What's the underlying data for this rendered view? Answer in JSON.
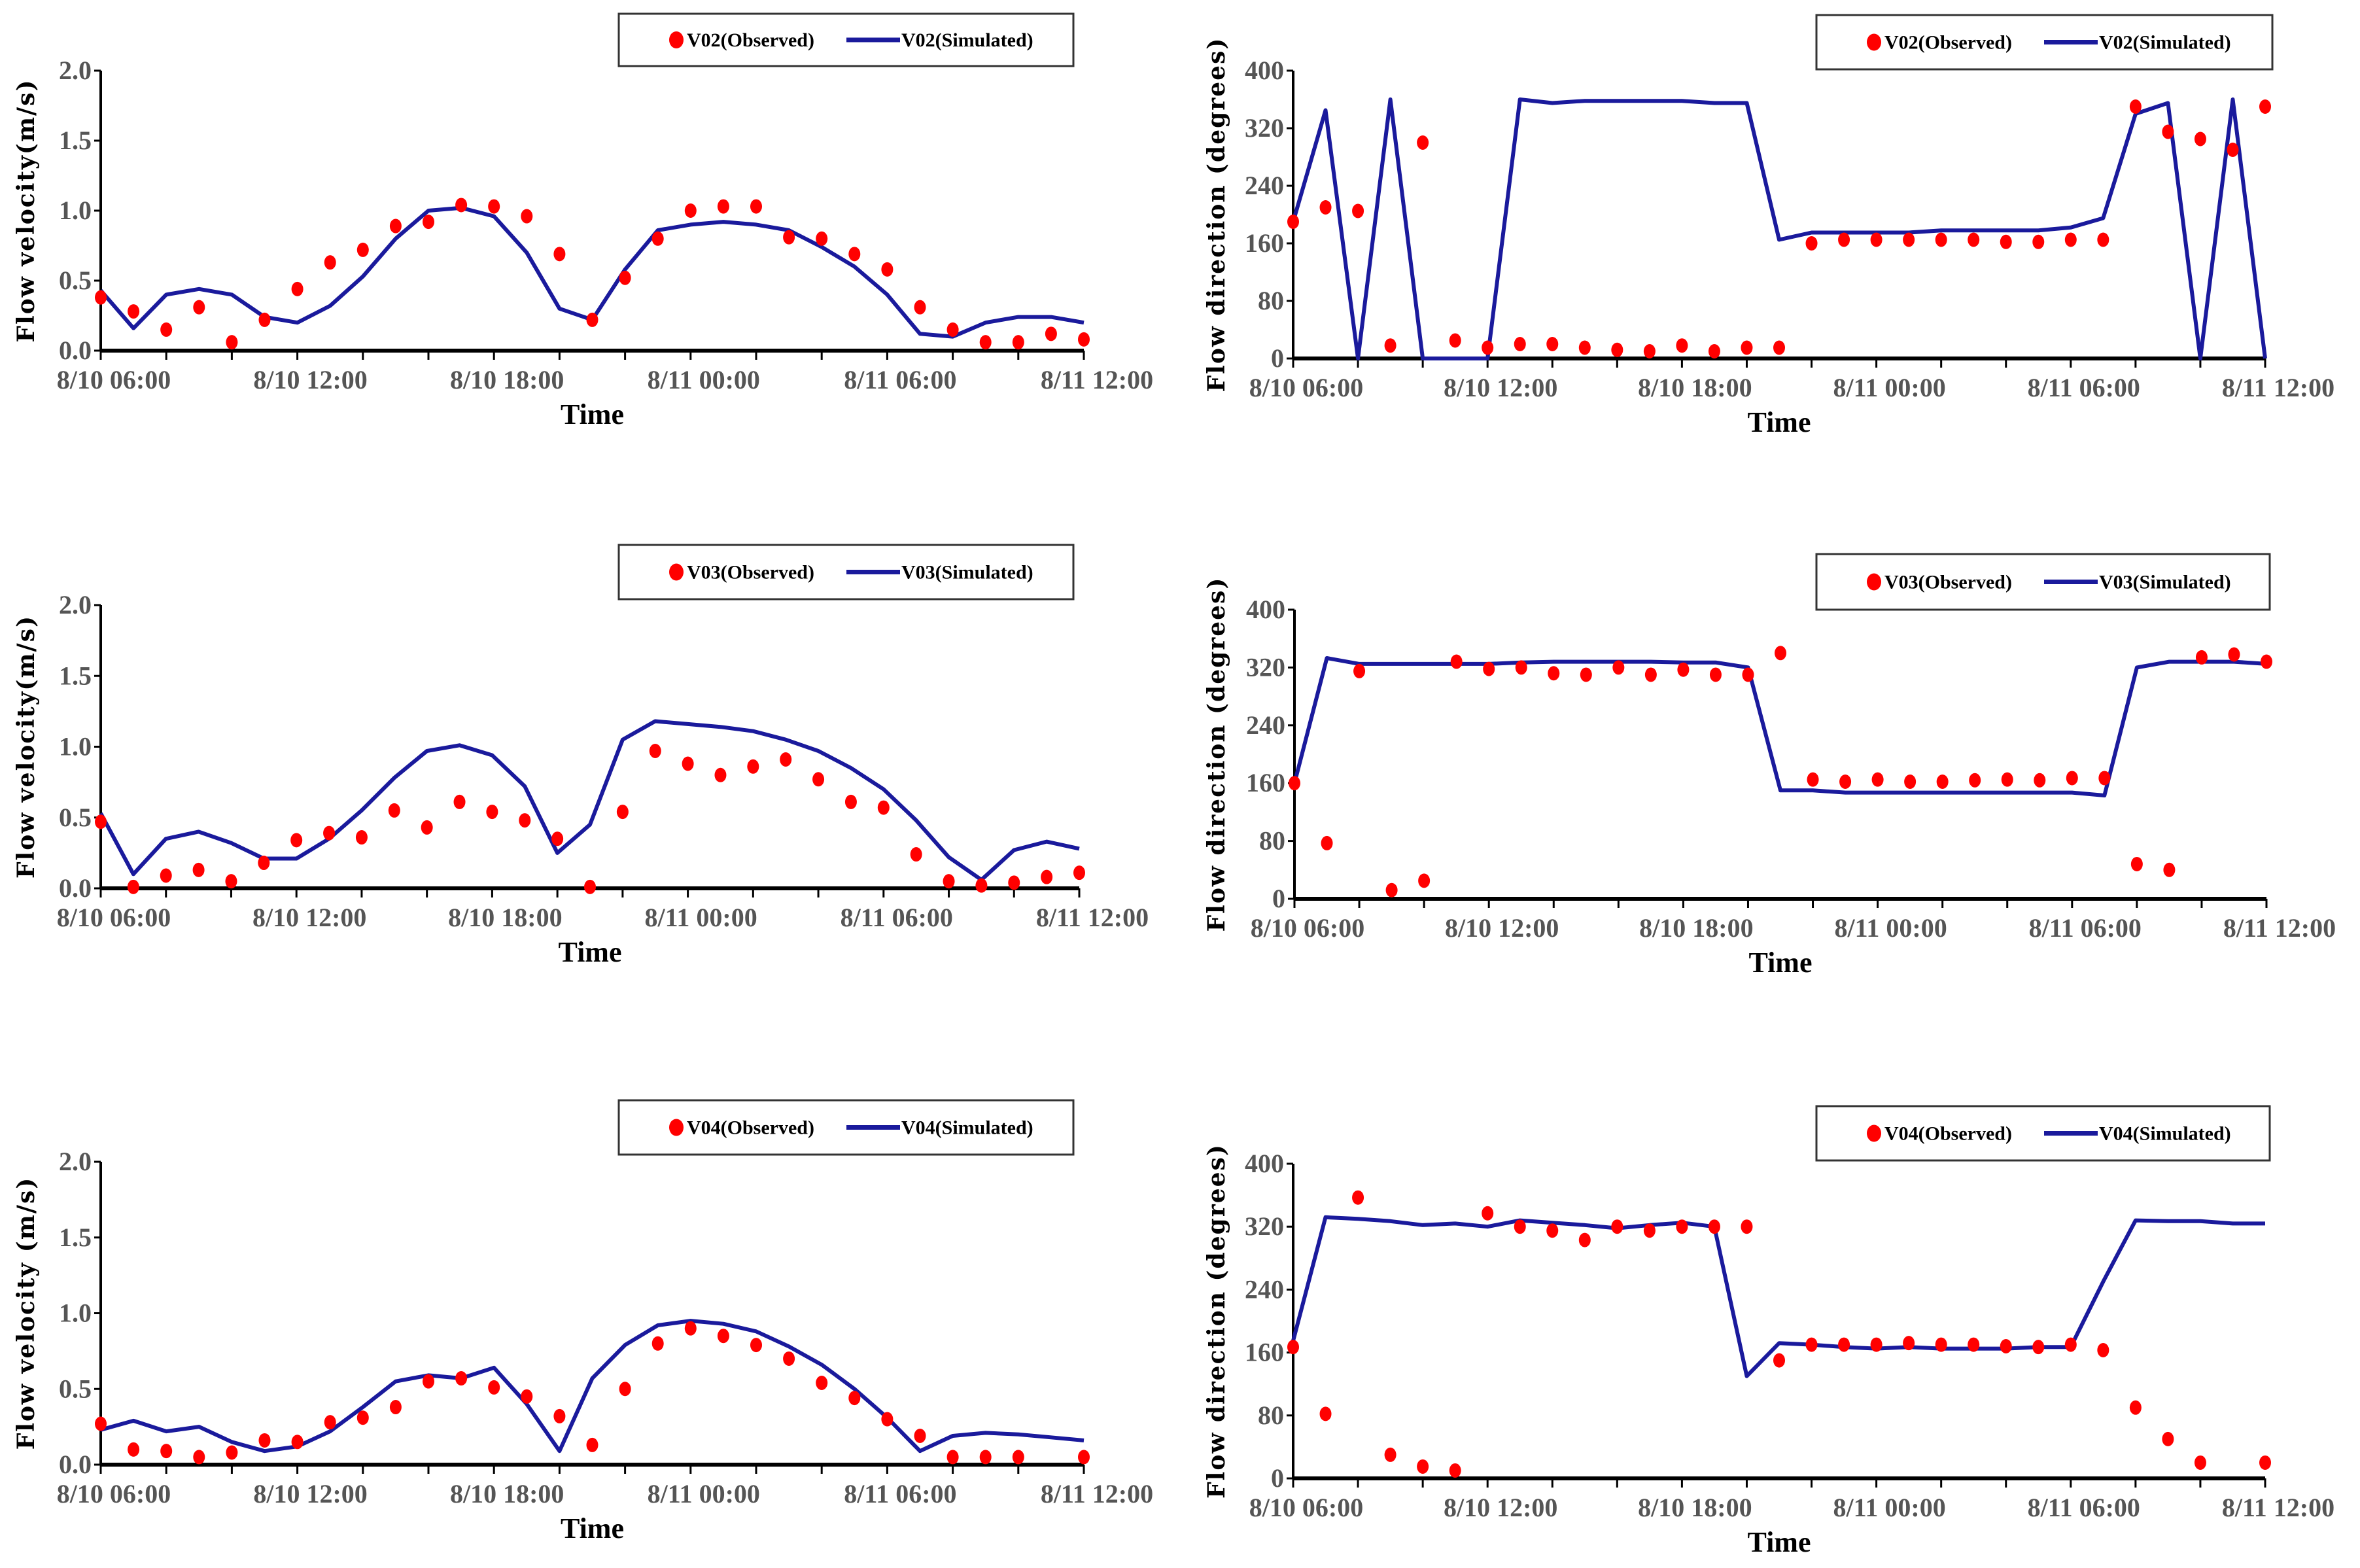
{
  "chart_data": [
    {
      "type": "line+scatter",
      "id": "v02-velocity",
      "ylabel": "Flow velocity(m/s)",
      "xlabel": "Time",
      "ylim": [
        0,
        2.0
      ],
      "yticks": [
        "0.0",
        "0.5",
        "1.0",
        "1.5",
        "2.0"
      ],
      "ytick_values": [
        0,
        0.5,
        1.0,
        1.5,
        2.0
      ],
      "xlim_hours": [
        0,
        30
      ],
      "xtick_labels": [
        "8/10 06:00",
        "8/10 12:00",
        "8/10 18:00",
        "8/11 00:00",
        "8/11 06:00",
        "8/11 12:00"
      ],
      "xtick_hours": [
        0,
        6,
        12,
        18,
        24,
        30
      ],
      "legend": {
        "observed": "V02(Observed)",
        "simulated": "V02(Simulated)",
        "placement": "top-right"
      },
      "observed": [
        0.38,
        0.28,
        0.15,
        0.31,
        0.06,
        0.22,
        0.44,
        0.63,
        0.72,
        0.89,
        0.92,
        1.04,
        1.03,
        0.96,
        0.69,
        0.22,
        0.52,
        0.8,
        1.0,
        1.03,
        1.03,
        0.81,
        0.8,
        0.69,
        0.58,
        0.31,
        0.15,
        0.06,
        0.06,
        0.12,
        0.08
      ],
      "simulated": [
        0.43,
        0.16,
        0.4,
        0.44,
        0.4,
        0.24,
        0.2,
        0.32,
        0.53,
        0.8,
        1.0,
        1.02,
        0.96,
        0.7,
        0.3,
        0.22,
        0.58,
        0.86,
        0.9,
        0.92,
        0.9,
        0.86,
        0.74,
        0.6,
        0.4,
        0.12,
        0.1,
        0.2,
        0.24,
        0.24,
        0.2
      ]
    },
    {
      "type": "line+scatter",
      "id": "v02-direction",
      "ylabel": "Flow direction (degrees)",
      "xlabel": "Time",
      "ylim": [
        0,
        400
      ],
      "yticks": [
        "0",
        "80",
        "160",
        "240",
        "320",
        "400"
      ],
      "ytick_values": [
        0,
        80,
        160,
        240,
        320,
        400
      ],
      "xlim_hours": [
        0,
        30
      ],
      "xtick_labels": [
        "8/10 06:00",
        "8/10 12:00",
        "8/10 18:00",
        "8/11 00:00",
        "8/11 06:00",
        "8/11 12:00"
      ],
      "xtick_hours": [
        0,
        6,
        12,
        18,
        24,
        30
      ],
      "legend": {
        "observed": "V02(Observed)",
        "simulated": "V02(Simulated)",
        "placement": "top-right"
      },
      "observed": [
        190,
        210,
        205,
        18,
        300,
        25,
        15,
        20,
        20,
        15,
        12,
        10,
        18,
        10,
        15,
        15,
        160,
        165,
        165,
        165,
        165,
        165,
        162,
        162,
        165,
        165,
        350,
        315,
        305,
        290,
        350
      ],
      "simulated": [
        190,
        345,
        0,
        360,
        0,
        0,
        0,
        360,
        355,
        358,
        358,
        358,
        358,
        355,
        355,
        165,
        175,
        175,
        175,
        175,
        178,
        178,
        178,
        178,
        182,
        195,
        340,
        355,
        0,
        360,
        0
      ]
    },
    {
      "type": "line+scatter",
      "id": "v03-velocity",
      "ylabel": "Flow velocity(m/s)",
      "xlabel": "Time",
      "ylim": [
        0,
        2.0
      ],
      "yticks": [
        "0.0",
        "0.5",
        "1.0",
        "1.5",
        "2.0"
      ],
      "ytick_values": [
        0,
        0.5,
        1.0,
        1.5,
        2.0
      ],
      "xlim_hours": [
        0,
        30
      ],
      "xtick_labels": [
        "8/10 06:00",
        "8/10 12:00",
        "8/10 18:00",
        "8/11 00:00",
        "8/11 06:00",
        "8/11 12:00"
      ],
      "xtick_hours": [
        0,
        6,
        12,
        18,
        24,
        30
      ],
      "legend": {
        "observed": "V03(Observed)",
        "simulated": "V03(Simulated)",
        "placement": "top-right"
      },
      "observed": [
        0.47,
        0.01,
        0.09,
        0.13,
        0.05,
        0.18,
        0.34,
        0.39,
        0.36,
        0.55,
        0.43,
        0.61,
        0.54,
        0.48,
        0.35,
        0.01,
        0.54,
        0.97,
        0.88,
        0.8,
        0.86,
        0.91,
        0.77,
        0.61,
        0.57,
        0.24,
        0.05,
        0.02,
        0.04,
        0.08,
        0.11
      ],
      "simulated": [
        0.53,
        0.1,
        0.35,
        0.4,
        0.32,
        0.21,
        0.21,
        0.35,
        0.55,
        0.78,
        0.97,
        1.01,
        0.94,
        0.72,
        0.25,
        0.45,
        1.05,
        1.18,
        1.16,
        1.14,
        1.11,
        1.05,
        0.97,
        0.85,
        0.7,
        0.48,
        0.22,
        0.06,
        0.27,
        0.33,
        0.28
      ]
    },
    {
      "type": "line+scatter",
      "id": "v03-direction",
      "ylabel": "Flow direction (degrees)",
      "xlabel": "Time",
      "ylim": [
        0,
        400
      ],
      "yticks": [
        "0",
        "80",
        "160",
        "240",
        "320",
        "400"
      ],
      "ytick_values": [
        0,
        80,
        160,
        240,
        320,
        400
      ],
      "xlim_hours": [
        0,
        30
      ],
      "xtick_labels": [
        "8/10 06:00",
        "8/10 12:00",
        "8/10 18:00",
        "8/11 00:00",
        "8/11 06:00",
        "8/11 12:00"
      ],
      "xtick_hours": [
        0,
        6,
        12,
        18,
        24,
        30
      ],
      "legend": {
        "observed": "V03(Observed)",
        "simulated": "V03(Simulated)",
        "placement": "top-right"
      },
      "observed": [
        160,
        77,
        315,
        12,
        25,
        328,
        318,
        320,
        312,
        310,
        320,
        310,
        317,
        310,
        310,
        340,
        165,
        162,
        165,
        162,
        162,
        164,
        165,
        164,
        167,
        167,
        48,
        40,
        334,
        338,
        328
      ],
      "simulated": [
        160,
        333,
        325,
        325,
        325,
        325,
        325,
        327,
        328,
        328,
        328,
        328,
        327,
        327,
        320,
        150,
        150,
        147,
        147,
        147,
        147,
        147,
        147,
        147,
        147,
        143,
        320,
        328,
        328,
        328,
        325
      ]
    },
    {
      "type": "line+scatter",
      "id": "v04-velocity",
      "ylabel": "Flow velocity (m/s)",
      "xlabel": "Time",
      "ylim": [
        0,
        2.0
      ],
      "yticks": [
        "0.0",
        "0.5",
        "1.0",
        "1.5",
        "2.0"
      ],
      "ytick_values": [
        0,
        0.5,
        1.0,
        1.5,
        2.0
      ],
      "xlim_hours": [
        0,
        30
      ],
      "xtick_labels": [
        "8/10 06:00",
        "8/10 12:00",
        "8/10 18:00",
        "8/11 00:00",
        "8/11 06:00",
        "8/11 12:00"
      ],
      "xtick_hours": [
        0,
        6,
        12,
        18,
        24,
        30
      ],
      "legend": {
        "observed": "V04(Observed)",
        "simulated": "V04(Simulated)",
        "placement": "top-right"
      },
      "observed": [
        0.27,
        0.1,
        0.09,
        0.05,
        0.08,
        0.16,
        0.15,
        0.28,
        0.31,
        0.38,
        0.55,
        0.57,
        0.51,
        0.45,
        0.32,
        0.13,
        0.5,
        0.8,
        0.9,
        0.85,
        0.79,
        0.7,
        0.54,
        0.44,
        0.3,
        0.19,
        0.05,
        0.05,
        0.05,
        null,
        0.05
      ],
      "simulated": [
        0.23,
        0.29,
        0.22,
        0.25,
        0.15,
        0.09,
        0.12,
        0.22,
        0.38,
        0.55,
        0.59,
        0.57,
        0.64,
        0.4,
        0.09,
        0.57,
        0.79,
        0.92,
        0.95,
        0.93,
        0.88,
        0.78,
        0.66,
        0.5,
        0.31,
        0.09,
        0.19,
        0.21,
        0.2,
        0.18,
        0.16
      ]
    },
    {
      "type": "line+scatter",
      "id": "v04-direction",
      "ylabel": "Flow direction (degrees)",
      "xlabel": "Time",
      "ylim": [
        0,
        400
      ],
      "yticks": [
        "0",
        "80",
        "160",
        "240",
        "320",
        "400"
      ],
      "ytick_values": [
        0,
        80,
        160,
        240,
        320,
        400
      ],
      "xlim_hours": [
        0,
        30
      ],
      "xtick_labels": [
        "8/10 06:00",
        "8/10 12:00",
        "8/10 18:00",
        "8/11 00:00",
        "8/11 06:00",
        "8/11 12:00"
      ],
      "xtick_hours": [
        0,
        6,
        12,
        18,
        24,
        30
      ],
      "legend": {
        "observed": "V04(Observed)",
        "simulated": "V04(Simulated)",
        "placement": "top-right"
      },
      "observed": [
        167,
        82,
        357,
        30,
        15,
        10,
        337,
        320,
        315,
        303,
        320,
        315,
        320,
        320,
        320,
        150,
        170,
        170,
        170,
        172,
        170,
        170,
        168,
        167,
        170,
        163,
        90,
        50,
        20,
        null,
        20
      ],
      "simulated": [
        175,
        332,
        330,
        327,
        322,
        324,
        320,
        328,
        325,
        322,
        318,
        322,
        325,
        320,
        130,
        172,
        170,
        167,
        165,
        167,
        165,
        165,
        165,
        167,
        167,
        250,
        328,
        327,
        327,
        324,
        324
      ]
    }
  ],
  "colors": {
    "observed": "#ff0000",
    "simulated": "#1a1a9c",
    "axis": "#000000"
  }
}
